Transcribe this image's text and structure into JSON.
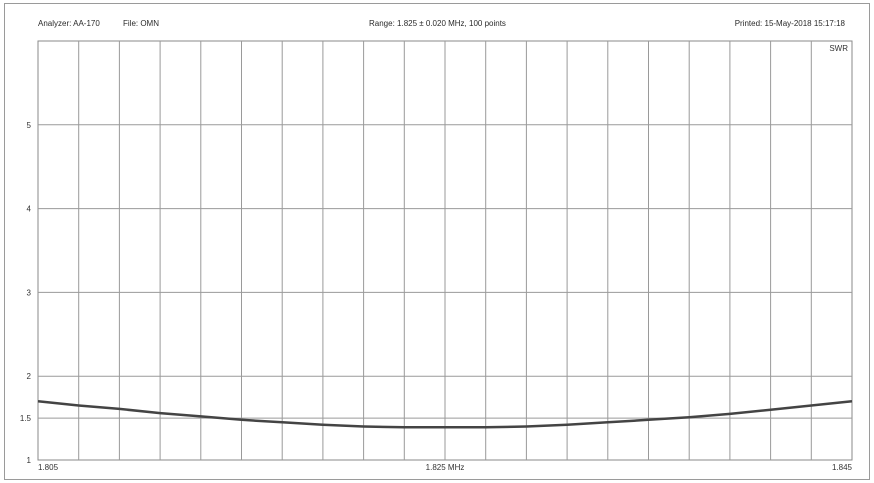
{
  "header": {
    "analyzer": "Analyzer: AA-170",
    "file": "File: OMN",
    "range": "Range: 1.825 ± 0.020 MHz, 100 points",
    "printed": "Printed: 15-May-2018 15:17:18"
  },
  "chart_data": {
    "type": "line",
    "ylabel_corner": "SWR",
    "x_unit": "MHz",
    "xlim": [
      1.805,
      1.845
    ],
    "ylim": [
      1,
      6
    ],
    "x_tick_labels": [
      {
        "value": 1.805,
        "label": "1.805"
      },
      {
        "value": 1.825,
        "label": "1.825 MHz"
      },
      {
        "value": 1.845,
        "label": "1.845"
      }
    ],
    "y_tick_labels": [
      {
        "value": 1,
        "label": "1"
      },
      {
        "value": 1.5,
        "label": "1.5"
      },
      {
        "value": 2,
        "label": "2"
      },
      {
        "value": 3,
        "label": "3"
      },
      {
        "value": 4,
        "label": "4"
      },
      {
        "value": 5,
        "label": "5"
      }
    ],
    "x_grid_divisions": 20,
    "grid": true,
    "series": [
      {
        "color": "#444444",
        "x": [
          1.805,
          1.807,
          1.809,
          1.811,
          1.813,
          1.815,
          1.817,
          1.819,
          1.821,
          1.823,
          1.825,
          1.827,
          1.829,
          1.831,
          1.833,
          1.835,
          1.837,
          1.839,
          1.841,
          1.843,
          1.845
        ],
        "y": [
          1.7,
          1.65,
          1.61,
          1.56,
          1.52,
          1.48,
          1.45,
          1.42,
          1.4,
          1.39,
          1.39,
          1.39,
          1.4,
          1.42,
          1.45,
          1.48,
          1.51,
          1.55,
          1.6,
          1.65,
          1.7
        ]
      }
    ]
  }
}
